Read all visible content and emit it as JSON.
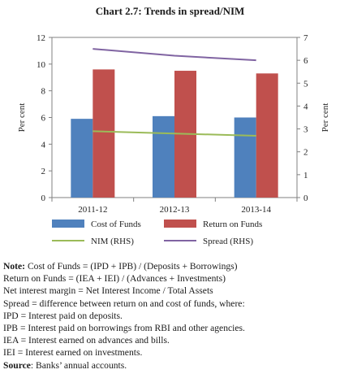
{
  "chart_title": "Chart 2.7: Trends in spread/NIM",
  "chart_data": {
    "type": "bar",
    "categories": [
      "2011-12",
      "2012-13",
      "2013-14"
    ],
    "series": [
      {
        "name": "Cost of Funds",
        "kind": "bar",
        "axis": "left",
        "color": "#4f81bd",
        "values": [
          5.9,
          6.1,
          6.0
        ]
      },
      {
        "name": "Return on Funds",
        "kind": "bar",
        "axis": "left",
        "color": "#c0504d",
        "values": [
          9.6,
          9.5,
          9.3
        ]
      },
      {
        "name": "NIM (RHS)",
        "kind": "line",
        "axis": "right",
        "color": "#9bbb59",
        "values": [
          2.9,
          2.8,
          2.7
        ]
      },
      {
        "name": "Spread (RHS)",
        "kind": "line",
        "axis": "right",
        "color": "#8064a2",
        "values": [
          6.5,
          6.2,
          6.0
        ]
      }
    ],
    "ylabel": "Per cent",
    "y2label": "Per cent",
    "ylim": [
      0,
      12
    ],
    "y2lim": [
      0,
      7
    ],
    "yticks": [
      "0",
      "2",
      "4",
      "6",
      "8",
      "10",
      "12"
    ],
    "y2ticks": [
      "0",
      "1",
      "2",
      "3",
      "4",
      "5",
      "6",
      "7"
    ],
    "grid": false,
    "legend_position": "bottom"
  },
  "notes": {
    "note_label": "Note:",
    "note_text": " Cost of Funds = (IPD + IPB) / (Deposits + Borrowings)",
    "lines": [
      "Return on Funds = (IEA + IEI) / (Advances + Investments)",
      "Net interest margin = Net Interest Income / Total Assets",
      "Spread = difference between return on and cost of funds, where:",
      "IPD = Interest paid on deposits.",
      "IPB = Interest paid on borrowings from RBI and other agencies.",
      "IEA = Interest earned on advances and bills.",
      "IEI = Interest earned on investments."
    ],
    "source_label": "Source",
    "source_text": ": Banks’ annual accounts."
  }
}
